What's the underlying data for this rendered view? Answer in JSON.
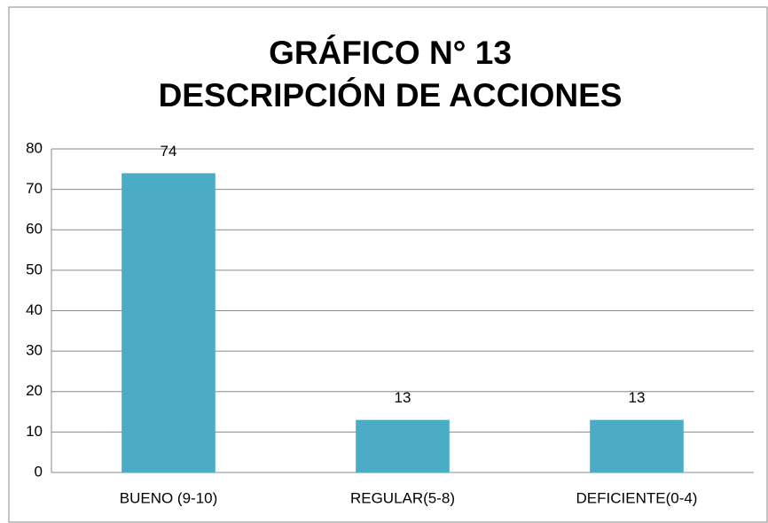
{
  "chart_data": {
    "type": "bar",
    "title": "GRÁFICO N° 13",
    "subtitle": "DESCRIPCIÓN DE ACCIONES",
    "categories": [
      "BUENO (9-10)",
      "REGULAR(5-8)",
      "DEFICIENTE(0-4)"
    ],
    "values": [
      74,
      13,
      13
    ],
    "color": "#4bacc6",
    "ylim": [
      0,
      80
    ],
    "yticks": [
      0,
      10,
      20,
      30,
      40,
      50,
      60,
      70,
      80
    ],
    "grid": true,
    "data_labels": true
  }
}
